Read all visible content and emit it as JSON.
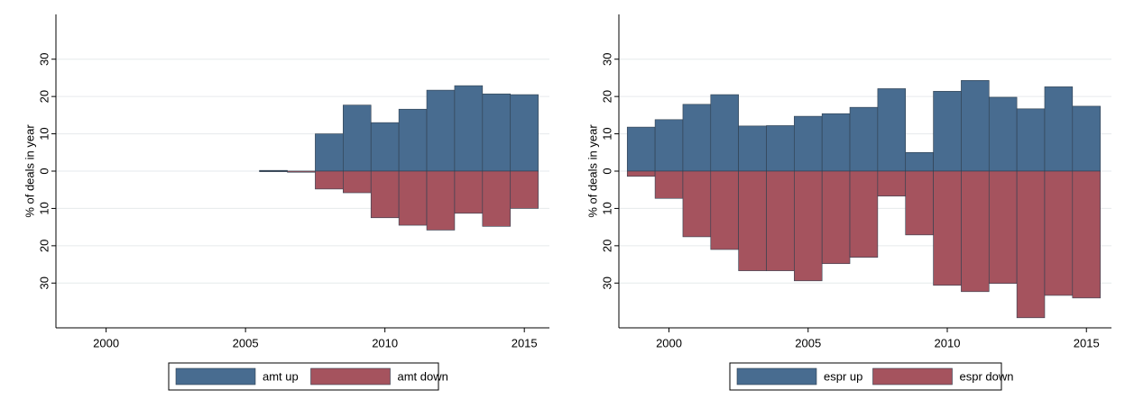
{
  "chart_data": [
    {
      "type": "bar",
      "ylabel": "% of deals in year",
      "x": [
        2006,
        2007,
        2008,
        2009,
        2010,
        2011,
        2012,
        2013,
        2014,
        2015
      ],
      "series": [
        {
          "name": "amt up",
          "color": "#486c90",
          "values": [
            0.2,
            0,
            10,
            17.7,
            13,
            16.6,
            21.7,
            22.9,
            20.7,
            20.5
          ]
        },
        {
          "name": "amt down",
          "color": "#a5535e",
          "values": [
            0,
            -0.3,
            -4.8,
            -5.8,
            -12.5,
            -14.5,
            -15.8,
            -11.3,
            -14.8,
            -10
          ]
        }
      ],
      "xlim": [
        1998.2,
        2015.9
      ],
      "xticks": [
        2000,
        2005,
        2010,
        2015
      ],
      "ylim": [
        -42,
        42
      ],
      "yticks": [
        30,
        20,
        10,
        0,
        {
          "value": -10,
          "label": "10"
        },
        {
          "value": -20,
          "label": "20"
        },
        {
          "value": -30,
          "label": "30"
        }
      ],
      "grid": true,
      "legend": "bottom"
    },
    {
      "type": "bar",
      "ylabel": "% of deals in year",
      "x": [
        1999,
        2000,
        2001,
        2002,
        2003,
        2004,
        2005,
        2006,
        2007,
        2008,
        2009,
        2010,
        2011,
        2012,
        2013,
        2014,
        2015
      ],
      "series": [
        {
          "name": "espr up",
          "color": "#486c90",
          "values": [
            11.8,
            13.8,
            17.9,
            20.5,
            12.1,
            12.2,
            14.7,
            15.4,
            17.1,
            22.1,
            5,
            21.4,
            24.3,
            19.8,
            16.7,
            22.6,
            17.4
          ]
        },
        {
          "name": "espr down",
          "color": "#a5535e",
          "values": [
            -1.4,
            -7.3,
            -17.6,
            -21,
            -26.7,
            -26.7,
            -29.4,
            -24.8,
            -23.1,
            -6.7,
            -17.1,
            -30.6,
            -32.3,
            -30.1,
            -39.3,
            -33.3,
            -34
          ]
        }
      ],
      "xlim": [
        1998.2,
        2015.9
      ],
      "xticks": [
        2000,
        2005,
        2010,
        2015
      ],
      "ylim": [
        -42,
        42
      ],
      "yticks": [
        30,
        20,
        10,
        0,
        {
          "value": -10,
          "label": "10"
        },
        {
          "value": -20,
          "label": "20"
        },
        {
          "value": -30,
          "label": "30"
        }
      ],
      "grid": true,
      "legend": "bottom"
    }
  ]
}
